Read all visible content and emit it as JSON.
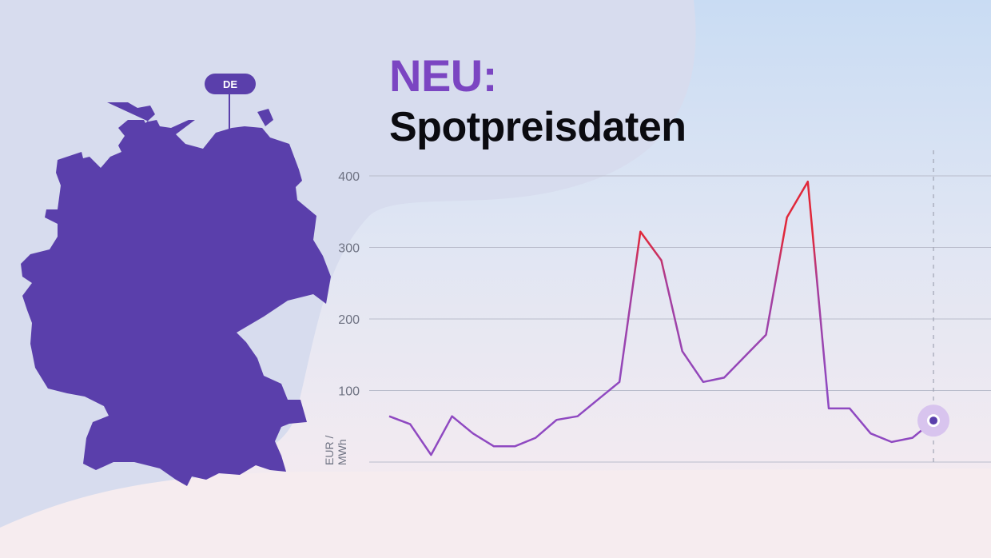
{
  "headline": {
    "line1": "NEU:",
    "line2": "Spotpreisdaten"
  },
  "map": {
    "country_label": "DE"
  },
  "colors": {
    "accent": "#7b45c2",
    "map_fill": "#5a3fab",
    "line_low": "#8f49c1",
    "line_high": "#e0283a"
  },
  "chart_data": {
    "type": "line",
    "title": "",
    "ylabel": "EUR / MWh",
    "ylabel_lines": [
      "EUR /",
      "MWh"
    ],
    "xlabel": "",
    "ylim": [
      0,
      400
    ],
    "yticks": [
      100,
      200,
      300,
      400
    ],
    "grid": true,
    "highlight_threshold": 150,
    "series": [
      {
        "values": [
          64,
          53,
          10,
          64,
          40,
          22,
          22,
          34,
          59,
          64,
          88,
          112,
          322,
          282,
          155,
          112,
          118,
          148,
          178,
          342,
          392,
          75,
          75,
          40,
          28,
          34,
          58
        ]
      }
    ],
    "marker": {
      "index": 26,
      "value": 58
    }
  }
}
